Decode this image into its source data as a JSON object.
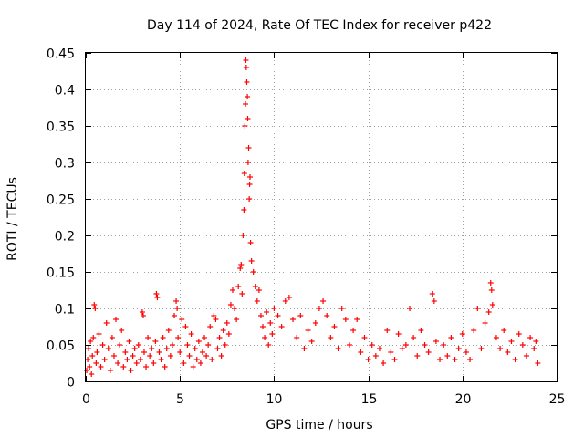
{
  "chart_data": {
    "type": "scatter",
    "title": "Day 114 of 2024, Rate Of TEC Index for receiver p422",
    "xlabel": "GPS time / hours",
    "ylabel": "ROTI / TECUs",
    "xlim": [
      0,
      25
    ],
    "ylim": [
      0,
      0.45
    ],
    "x_ticks": [
      0,
      5,
      10,
      15,
      20,
      25
    ],
    "y_ticks": [
      0,
      0.05,
      0.1,
      0.15,
      0.2,
      0.25,
      0.3,
      0.35,
      0.4,
      0.45
    ],
    "x_tick_labels": [
      "0",
      "5",
      "10",
      "15",
      "20",
      "25"
    ],
    "y_tick_labels": [
      "0",
      "0.05",
      "0.1",
      "0.15",
      "0.2",
      "0.25",
      "0.3",
      "0.35",
      "0.4",
      "0.45"
    ],
    "grid": true,
    "marker": "+",
    "marker_color": "#ff0000",
    "series": [
      {
        "name": "ROTI",
        "points": [
          [
            0.05,
            0.015
          ],
          [
            0.1,
            0.03
          ],
          [
            0.15,
            0.045
          ],
          [
            0.2,
            0.02
          ],
          [
            0.25,
            0.055
          ],
          [
            0.3,
            0.01
          ],
          [
            0.35,
            0.035
          ],
          [
            0.4,
            0.06
          ],
          [
            0.45,
            0.105
          ],
          [
            0.5,
            0.1
          ],
          [
            0.55,
            0.025
          ],
          [
            0.6,
            0.04
          ],
          [
            0.7,
            0.065
          ],
          [
            0.8,
            0.02
          ],
          [
            0.9,
            0.05
          ],
          [
            1.0,
            0.03
          ],
          [
            1.1,
            0.08
          ],
          [
            1.2,
            0.045
          ],
          [
            1.3,
            0.015
          ],
          [
            1.4,
            0.06
          ],
          [
            1.5,
            0.035
          ],
          [
            1.6,
            0.085
          ],
          [
            1.7,
            0.025
          ],
          [
            1.8,
            0.05
          ],
          [
            1.9,
            0.07
          ],
          [
            2.0,
            0.02
          ],
          [
            2.1,
            0.04
          ],
          [
            2.2,
            0.03
          ],
          [
            2.3,
            0.055
          ],
          [
            2.4,
            0.015
          ],
          [
            2.5,
            0.035
          ],
          [
            2.6,
            0.045
          ],
          [
            2.7,
            0.025
          ],
          [
            2.8,
            0.05
          ],
          [
            2.9,
            0.03
          ],
          [
            3.0,
            0.095
          ],
          [
            3.05,
            0.09
          ],
          [
            3.1,
            0.04
          ],
          [
            3.2,
            0.02
          ],
          [
            3.3,
            0.06
          ],
          [
            3.4,
            0.035
          ],
          [
            3.5,
            0.045
          ],
          [
            3.6,
            0.025
          ],
          [
            3.7,
            0.055
          ],
          [
            3.75,
            0.12
          ],
          [
            3.8,
            0.115
          ],
          [
            3.9,
            0.04
          ],
          [
            4.0,
            0.03
          ],
          [
            4.1,
            0.06
          ],
          [
            4.2,
            0.02
          ],
          [
            4.3,
            0.045
          ],
          [
            4.4,
            0.07
          ],
          [
            4.5,
            0.035
          ],
          [
            4.6,
            0.05
          ],
          [
            4.7,
            0.09
          ],
          [
            4.8,
            0.11
          ],
          [
            4.85,
            0.1
          ],
          [
            4.9,
            0.06
          ],
          [
            5.0,
            0.04
          ],
          [
            5.1,
            0.085
          ],
          [
            5.2,
            0.025
          ],
          [
            5.3,
            0.075
          ],
          [
            5.4,
            0.05
          ],
          [
            5.5,
            0.035
          ],
          [
            5.6,
            0.065
          ],
          [
            5.7,
            0.02
          ],
          [
            5.8,
            0.045
          ],
          [
            5.9,
            0.03
          ],
          [
            6.0,
            0.055
          ],
          [
            6.1,
            0.025
          ],
          [
            6.2,
            0.04
          ],
          [
            6.3,
            0.06
          ],
          [
            6.4,
            0.035
          ],
          [
            6.5,
            0.05
          ],
          [
            6.6,
            0.075
          ],
          [
            6.7,
            0.03
          ],
          [
            6.8,
            0.09
          ],
          [
            6.9,
            0.085
          ],
          [
            7.0,
            0.045
          ],
          [
            7.1,
            0.06
          ],
          [
            7.2,
            0.035
          ],
          [
            7.3,
            0.07
          ],
          [
            7.4,
            0.05
          ],
          [
            7.5,
            0.08
          ],
          [
            7.6,
            0.065
          ],
          [
            7.7,
            0.105
          ],
          [
            7.8,
            0.125
          ],
          [
            7.9,
            0.1
          ],
          [
            8.0,
            0.085
          ],
          [
            8.1,
            0.13
          ],
          [
            8.2,
            0.155
          ],
          [
            8.25,
            0.16
          ],
          [
            8.3,
            0.12
          ],
          [
            8.35,
            0.2
          ],
          [
            8.4,
            0.235
          ],
          [
            8.42,
            0.285
          ],
          [
            8.45,
            0.35
          ],
          [
            8.48,
            0.38
          ],
          [
            8.5,
            0.44
          ],
          [
            8.52,
            0.43
          ],
          [
            8.55,
            0.41
          ],
          [
            8.58,
            0.39
          ],
          [
            8.6,
            0.36
          ],
          [
            8.62,
            0.3
          ],
          [
            8.65,
            0.32
          ],
          [
            8.68,
            0.25
          ],
          [
            8.7,
            0.27
          ],
          [
            8.72,
            0.28
          ],
          [
            8.75,
            0.19
          ],
          [
            8.8,
            0.165
          ],
          [
            8.9,
            0.15
          ],
          [
            9.0,
            0.13
          ],
          [
            9.1,
            0.11
          ],
          [
            9.2,
            0.125
          ],
          [
            9.3,
            0.09
          ],
          [
            9.4,
            0.075
          ],
          [
            9.5,
            0.06
          ],
          [
            9.6,
            0.095
          ],
          [
            9.7,
            0.05
          ],
          [
            9.8,
            0.08
          ],
          [
            9.9,
            0.065
          ],
          [
            10.0,
            0.1
          ],
          [
            10.2,
            0.09
          ],
          [
            10.4,
            0.075
          ],
          [
            10.6,
            0.11
          ],
          [
            10.8,
            0.115
          ],
          [
            11.0,
            0.085
          ],
          [
            11.2,
            0.06
          ],
          [
            11.4,
            0.09
          ],
          [
            11.6,
            0.045
          ],
          [
            11.8,
            0.07
          ],
          [
            12.0,
            0.055
          ],
          [
            12.2,
            0.08
          ],
          [
            12.4,
            0.1
          ],
          [
            12.6,
            0.11
          ],
          [
            12.8,
            0.09
          ],
          [
            13.0,
            0.06
          ],
          [
            13.2,
            0.075
          ],
          [
            13.4,
            0.045
          ],
          [
            13.6,
            0.1
          ],
          [
            13.8,
            0.085
          ],
          [
            14.0,
            0.05
          ],
          [
            14.2,
            0.07
          ],
          [
            14.4,
            0.085
          ],
          [
            14.6,
            0.04
          ],
          [
            14.8,
            0.06
          ],
          [
            15.0,
            0.03
          ],
          [
            15.2,
            0.05
          ],
          [
            15.4,
            0.035
          ],
          [
            15.6,
            0.045
          ],
          [
            15.8,
            0.025
          ],
          [
            16.0,
            0.07
          ],
          [
            16.2,
            0.04
          ],
          [
            16.4,
            0.03
          ],
          [
            16.6,
            0.065
          ],
          [
            16.8,
            0.045
          ],
          [
            17.0,
            0.05
          ],
          [
            17.2,
            0.1
          ],
          [
            17.4,
            0.06
          ],
          [
            17.6,
            0.035
          ],
          [
            17.8,
            0.07
          ],
          [
            18.0,
            0.05
          ],
          [
            18.2,
            0.04
          ],
          [
            18.4,
            0.12
          ],
          [
            18.5,
            0.11
          ],
          [
            18.6,
            0.055
          ],
          [
            18.8,
            0.03
          ],
          [
            19.0,
            0.05
          ],
          [
            19.2,
            0.035
          ],
          [
            19.4,
            0.06
          ],
          [
            19.6,
            0.03
          ],
          [
            19.8,
            0.045
          ],
          [
            20.0,
            0.065
          ],
          [
            20.2,
            0.04
          ],
          [
            20.4,
            0.03
          ],
          [
            20.6,
            0.07
          ],
          [
            20.8,
            0.1
          ],
          [
            21.0,
            0.045
          ],
          [
            21.2,
            0.08
          ],
          [
            21.4,
            0.095
          ],
          [
            21.5,
            0.135
          ],
          [
            21.55,
            0.125
          ],
          [
            21.6,
            0.105
          ],
          [
            21.8,
            0.06
          ],
          [
            22.0,
            0.045
          ],
          [
            22.2,
            0.07
          ],
          [
            22.4,
            0.04
          ],
          [
            22.6,
            0.055
          ],
          [
            22.8,
            0.03
          ],
          [
            23.0,
            0.065
          ],
          [
            23.2,
            0.05
          ],
          [
            23.4,
            0.035
          ],
          [
            23.6,
            0.06
          ],
          [
            23.8,
            0.045
          ],
          [
            23.9,
            0.055
          ],
          [
            24.0,
            0.025
          ]
        ]
      }
    ]
  }
}
